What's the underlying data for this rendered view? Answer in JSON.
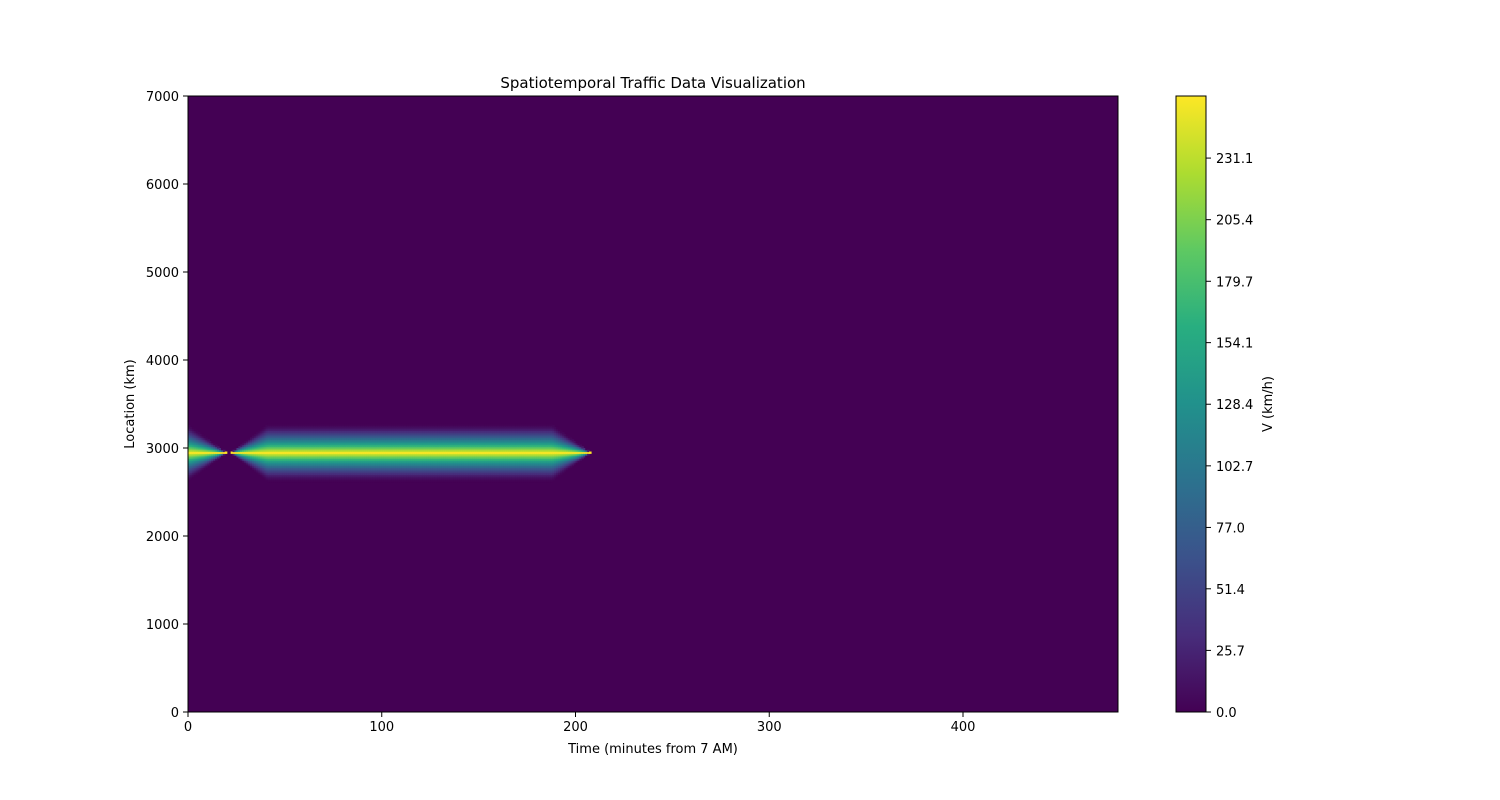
{
  "chart_data": {
    "type": "heatmap",
    "title": "Spatiotemporal Traffic Data Visualization",
    "xlabel": "Time (minutes from 7 AM)",
    "ylabel": "Location (km)",
    "xlim": [
      0,
      480
    ],
    "ylim": [
      0,
      7000
    ],
    "x_ticks": [
      "0",
      "100",
      "200",
      "300",
      "400"
    ],
    "y_ticks": [
      "0",
      "1000",
      "2000",
      "3000",
      "4000",
      "5000",
      "6000",
      "7000"
    ],
    "colormap": "viridis",
    "colorbar": {
      "label": "V (km/h)",
      "range": [
        0,
        257
      ],
      "ticks": [
        "0.0",
        "25.7",
        "51.4",
        "77.0",
        "102.7",
        "128.4",
        "154.1",
        "179.7",
        "205.4",
        "231.1"
      ]
    },
    "background_value": 0,
    "hotspot": {
      "center_location_km": 2950,
      "peak_value": 257,
      "segments": [
        {
          "plateau_start": 0,
          "plateau_end": 0,
          "taper_start": -20,
          "taper_end": 20,
          "half_width_km": 330
        },
        {
          "plateau_start": 41,
          "plateau_end": 188,
          "taper_start": 22,
          "taper_end": 208,
          "half_width_km": 330
        }
      ]
    },
    "grid": false
  }
}
